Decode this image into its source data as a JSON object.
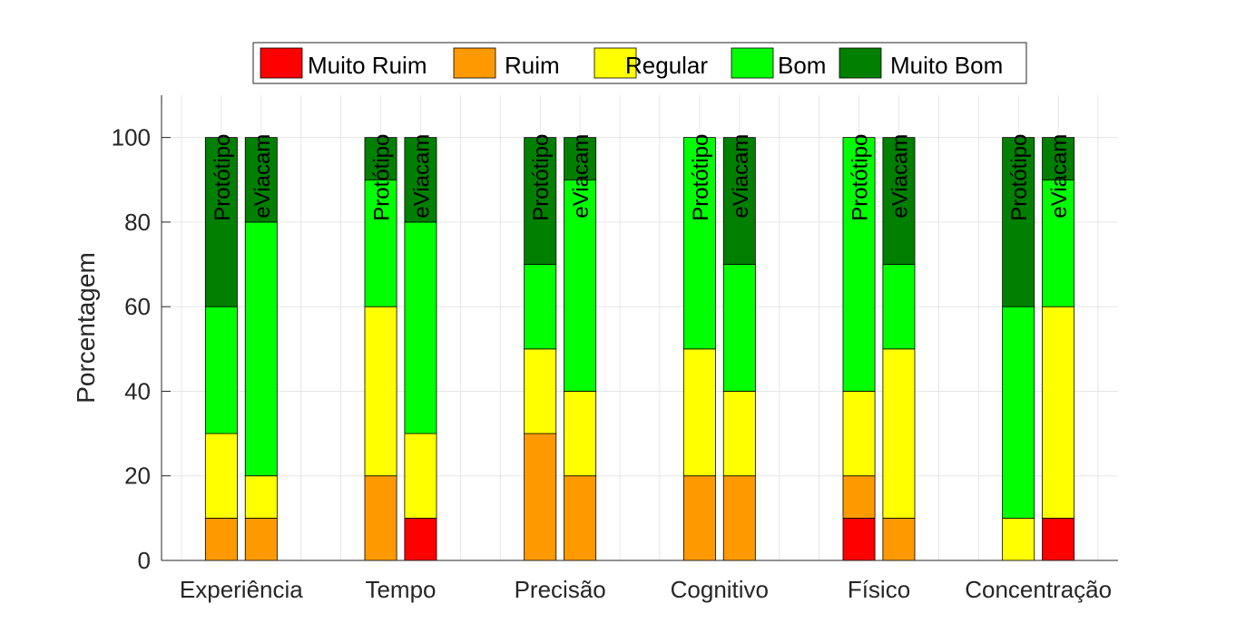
{
  "chart_data": {
    "type": "bar",
    "stacked": true,
    "categories": [
      "Experiência",
      "Tempo",
      "Precisão",
      "Cognitivo",
      "Físico",
      "Concentração"
    ],
    "groups": [
      "Protótipo",
      "eViacam"
    ],
    "ylabel": "Porcentagem",
    "ylim": [
      0,
      110
    ],
    "yticks": [
      0,
      20,
      40,
      60,
      80,
      100
    ],
    "grid": true,
    "legend_position": "top",
    "series": [
      {
        "name": "Muito Ruim",
        "color": "#ff0000",
        "values": [
          [
            0,
            0
          ],
          [
            0,
            10
          ],
          [
            0,
            0
          ],
          [
            0,
            0
          ],
          [
            10,
            0
          ],
          [
            0,
            10
          ]
        ]
      },
      {
        "name": "Ruim",
        "color": "#ff9900",
        "values": [
          [
            10,
            10
          ],
          [
            20,
            0
          ],
          [
            30,
            20
          ],
          [
            20,
            20
          ],
          [
            10,
            10
          ],
          [
            0,
            0
          ]
        ]
      },
      {
        "name": "Regular",
        "color": "#ffff00",
        "values": [
          [
            20,
            10
          ],
          [
            40,
            20
          ],
          [
            20,
            20
          ],
          [
            30,
            20
          ],
          [
            20,
            40
          ],
          [
            10,
            50
          ]
        ]
      },
      {
        "name": "Bom",
        "color": "#00ff00",
        "values": [
          [
            30,
            60
          ],
          [
            30,
            50
          ],
          [
            20,
            50
          ],
          [
            50,
            30
          ],
          [
            60,
            20
          ],
          [
            50,
            30
          ]
        ]
      },
      {
        "name": "Muito Bom",
        "color": "#007f00",
        "values": [
          [
            40,
            20
          ],
          [
            10,
            20
          ],
          [
            30,
            10
          ],
          [
            0,
            30
          ],
          [
            0,
            30
          ],
          [
            40,
            10
          ]
        ]
      }
    ]
  }
}
